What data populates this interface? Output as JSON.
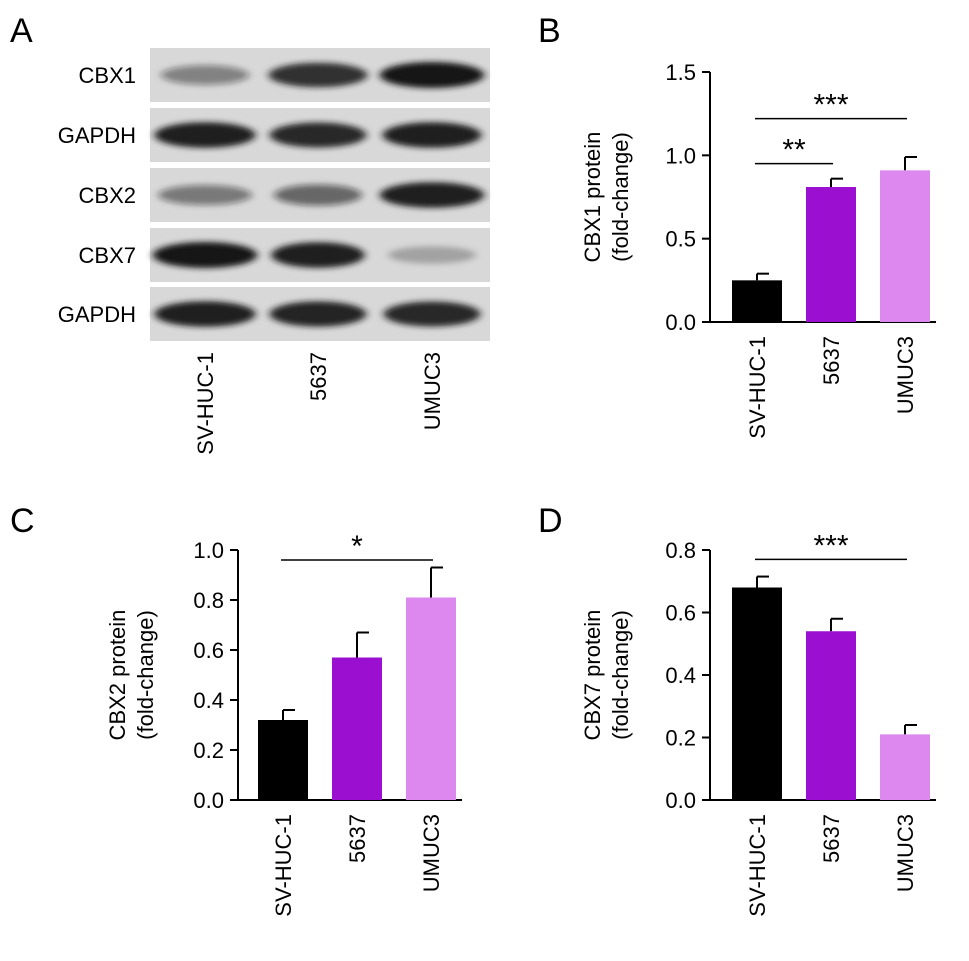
{
  "panel_labels": [
    "A",
    "B",
    "C",
    "D"
  ],
  "colors": {
    "SV-HUC-1": "#000000",
    "5637": "#9a0fd0",
    "UMUC3": "#dd88ee",
    "blot_bg": "#d8d8d8",
    "band": "#151515"
  },
  "western_blot": {
    "rows": [
      {
        "label": "CBX1",
        "intensities": [
          0.35,
          0.85,
          1.0
        ],
        "widths": [
          0.8,
          0.9,
          0.95
        ]
      },
      {
        "label": "GAPDH",
        "intensities": [
          0.95,
          0.9,
          0.95
        ],
        "widths": [
          0.92,
          0.88,
          0.9
        ]
      },
      {
        "label": "CBX2",
        "intensities": [
          0.4,
          0.5,
          0.95
        ],
        "widths": [
          0.85,
          0.8,
          0.95
        ]
      },
      {
        "label": "CBX7",
        "intensities": [
          1.0,
          0.95,
          0.12
        ],
        "widths": [
          0.95,
          0.85,
          0.8
        ]
      },
      {
        "label": "GAPDH",
        "intensities": [
          0.95,
          0.92,
          0.9
        ],
        "widths": [
          0.92,
          0.88,
          0.88
        ]
      }
    ],
    "lanes": [
      "SV-HUC-1",
      "5637",
      "UMUC3"
    ]
  },
  "chart_data": [
    {
      "panel": "B",
      "type": "bar",
      "categories": [
        "SV-HUC-1",
        "5637",
        "UMUC3"
      ],
      "values": [
        0.25,
        0.81,
        0.91
      ],
      "errors": [
        0.04,
        0.05,
        0.08
      ],
      "ylabel": [
        "CBX1 protein",
        "(fold-change)"
      ],
      "ylim": [
        0,
        1.5
      ],
      "yticks": [
        "0.0",
        "0.5",
        "1.0",
        "1.5"
      ],
      "significance": [
        {
          "from": 0,
          "to": 2,
          "label": "***",
          "y": 1.22
        },
        {
          "from": 0,
          "to": 1,
          "label": "**",
          "y": 0.95
        }
      ]
    },
    {
      "panel": "C",
      "type": "bar",
      "categories": [
        "SV-HUC-1",
        "5637",
        "UMUC3"
      ],
      "values": [
        0.32,
        0.57,
        0.81
      ],
      "errors": [
        0.04,
        0.1,
        0.12
      ],
      "ylabel": [
        "CBX2 protein",
        "(fold-change)"
      ],
      "ylim": [
        0,
        1.0
      ],
      "yticks": [
        "0.0",
        "0.2",
        "0.4",
        "0.6",
        "0.8",
        "1.0"
      ],
      "significance": [
        {
          "from": 0,
          "to": 2,
          "label": "*",
          "y": 0.96
        }
      ]
    },
    {
      "panel": "D",
      "type": "bar",
      "categories": [
        "SV-HUC-1",
        "5637",
        "UMUC3"
      ],
      "values": [
        0.68,
        0.54,
        0.21
      ],
      "errors": [
        0.035,
        0.04,
        0.03
      ],
      "ylabel": [
        "CBX7 protein",
        "(fold-change)"
      ],
      "ylim": [
        0,
        0.8
      ],
      "yticks": [
        "0.0",
        "0.2",
        "0.4",
        "0.6",
        "0.8"
      ],
      "significance": [
        {
          "from": 0,
          "to": 2,
          "label": "***",
          "y": 0.77
        }
      ]
    }
  ]
}
